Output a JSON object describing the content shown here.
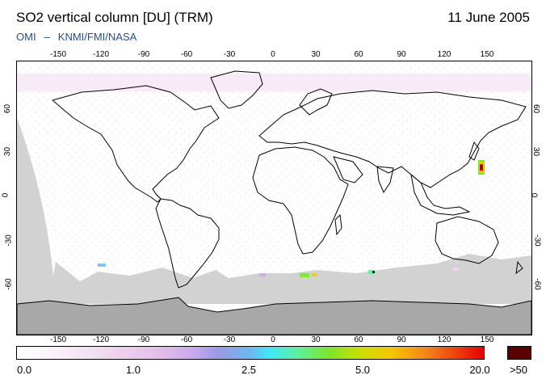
{
  "header": {
    "title": "SO2 vertical column [DU] (TRM)",
    "date": "11 June 2005",
    "credit_left": "OMI",
    "credit_sep": "–",
    "credit_right": "KNMI/FMI/NASA"
  },
  "map": {
    "lon_ticks": [
      "-150",
      "-120",
      "-90",
      "-60",
      "-30",
      "0",
      "30",
      "60",
      "90",
      "120",
      "150"
    ],
    "lat_ticks": [
      "60",
      "30",
      "0",
      "-30",
      "-60"
    ],
    "no_data_color": "#d2d2d2",
    "polar_color": "#a8a8a8"
  },
  "colorbar": {
    "labels": [
      "0.0",
      "1.0",
      "2.5",
      "5.0",
      "20.0"
    ],
    "overflow_label": ">50",
    "overflow_color": "#5a0000"
  }
}
